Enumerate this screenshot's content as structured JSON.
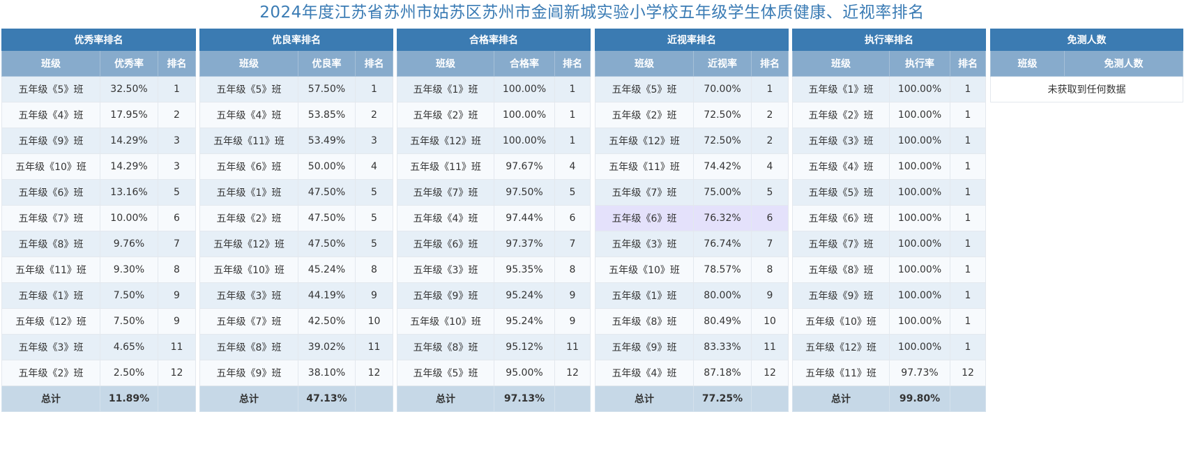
{
  "title": "2024年度江苏省苏州市姑苏区苏州市金阊新城实验小学校五年级学生体质健康、近视率排名",
  "panels": [
    {
      "header": "优秀率排名",
      "cols": [
        "班级",
        "优秀率",
        "排名"
      ],
      "rows": [
        [
          "五年级《5》班",
          "32.50%",
          "1"
        ],
        [
          "五年级《4》班",
          "17.95%",
          "2"
        ],
        [
          "五年级《9》班",
          "14.29%",
          "3"
        ],
        [
          "五年级《10》班",
          "14.29%",
          "3"
        ],
        [
          "五年级《6》班",
          "13.16%",
          "5"
        ],
        [
          "五年级《7》班",
          "10.00%",
          "6"
        ],
        [
          "五年级《8》班",
          "9.76%",
          "7"
        ],
        [
          "五年级《11》班",
          "9.30%",
          "8"
        ],
        [
          "五年级《1》班",
          "7.50%",
          "9"
        ],
        [
          "五年级《12》班",
          "7.50%",
          "9"
        ],
        [
          "五年级《3》班",
          "4.65%",
          "11"
        ],
        [
          "五年级《2》班",
          "2.50%",
          "12"
        ]
      ],
      "total_label": "总计",
      "total_value": "11.89%"
    },
    {
      "header": "优良率排名",
      "cols": [
        "班级",
        "优良率",
        "排名"
      ],
      "rows": [
        [
          "五年级《5》班",
          "57.50%",
          "1"
        ],
        [
          "五年级《4》班",
          "53.85%",
          "2"
        ],
        [
          "五年级《11》班",
          "53.49%",
          "3"
        ],
        [
          "五年级《6》班",
          "50.00%",
          "4"
        ],
        [
          "五年级《1》班",
          "47.50%",
          "5"
        ],
        [
          "五年级《2》班",
          "47.50%",
          "5"
        ],
        [
          "五年级《12》班",
          "47.50%",
          "5"
        ],
        [
          "五年级《10》班",
          "45.24%",
          "8"
        ],
        [
          "五年级《3》班",
          "44.19%",
          "9"
        ],
        [
          "五年级《7》班",
          "42.50%",
          "10"
        ],
        [
          "五年级《8》班",
          "39.02%",
          "11"
        ],
        [
          "五年级《9》班",
          "38.10%",
          "12"
        ]
      ],
      "total_label": "总计",
      "total_value": "47.13%"
    },
    {
      "header": "合格率排名",
      "cols": [
        "班级",
        "合格率",
        "排名"
      ],
      "rows": [
        [
          "五年级《1》班",
          "100.00%",
          "1"
        ],
        [
          "五年级《2》班",
          "100.00%",
          "1"
        ],
        [
          "五年级《12》班",
          "100.00%",
          "1"
        ],
        [
          "五年级《11》班",
          "97.67%",
          "4"
        ],
        [
          "五年级《7》班",
          "97.50%",
          "5"
        ],
        [
          "五年级《4》班",
          "97.44%",
          "6"
        ],
        [
          "五年级《6》班",
          "97.37%",
          "7"
        ],
        [
          "五年级《3》班",
          "95.35%",
          "8"
        ],
        [
          "五年级《9》班",
          "95.24%",
          "9"
        ],
        [
          "五年级《10》班",
          "95.24%",
          "9"
        ],
        [
          "五年级《8》班",
          "95.12%",
          "11"
        ],
        [
          "五年级《5》班",
          "95.00%",
          "12"
        ]
      ],
      "total_label": "总计",
      "total_value": "97.13%"
    },
    {
      "header": "近视率排名",
      "cols": [
        "班级",
        "近视率",
        "排名"
      ],
      "rows": [
        [
          "五年级《5》班",
          "70.00%",
          "1"
        ],
        [
          "五年级《2》班",
          "72.50%",
          "2"
        ],
        [
          "五年级《12》班",
          "72.50%",
          "2"
        ],
        [
          "五年级《11》班",
          "74.42%",
          "4"
        ],
        [
          "五年级《7》班",
          "75.00%",
          "5"
        ],
        [
          "五年级《6》班",
          "76.32%",
          "6"
        ],
        [
          "五年级《3》班",
          "76.74%",
          "7"
        ],
        [
          "五年级《10》班",
          "78.57%",
          "8"
        ],
        [
          "五年级《1》班",
          "80.00%",
          "9"
        ],
        [
          "五年级《8》班",
          "80.49%",
          "10"
        ],
        [
          "五年级《9》班",
          "83.33%",
          "11"
        ],
        [
          "五年级《4》班",
          "87.18%",
          "12"
        ]
      ],
      "highlighted_row": 5,
      "total_label": "总计",
      "total_value": "77.25%"
    },
    {
      "header": "执行率排名",
      "cols": [
        "班级",
        "执行率",
        "排名"
      ],
      "rows": [
        [
          "五年级《1》班",
          "100.00%",
          "1"
        ],
        [
          "五年级《2》班",
          "100.00%",
          "1"
        ],
        [
          "五年级《3》班",
          "100.00%",
          "1"
        ],
        [
          "五年级《4》班",
          "100.00%",
          "1"
        ],
        [
          "五年级《5》班",
          "100.00%",
          "1"
        ],
        [
          "五年级《6》班",
          "100.00%",
          "1"
        ],
        [
          "五年级《7》班",
          "100.00%",
          "1"
        ],
        [
          "五年级《8》班",
          "100.00%",
          "1"
        ],
        [
          "五年级《9》班",
          "100.00%",
          "1"
        ],
        [
          "五年级《10》班",
          "100.00%",
          "1"
        ],
        [
          "五年级《12》班",
          "100.00%",
          "1"
        ],
        [
          "五年级《11》班",
          "97.73%",
          "12"
        ]
      ],
      "total_label": "总计",
      "total_value": "99.80%"
    }
  ],
  "exempt": {
    "header": "免测人数",
    "cols": [
      "班级",
      "免测人数"
    ],
    "empty_text": "未获取到任何数据"
  }
}
